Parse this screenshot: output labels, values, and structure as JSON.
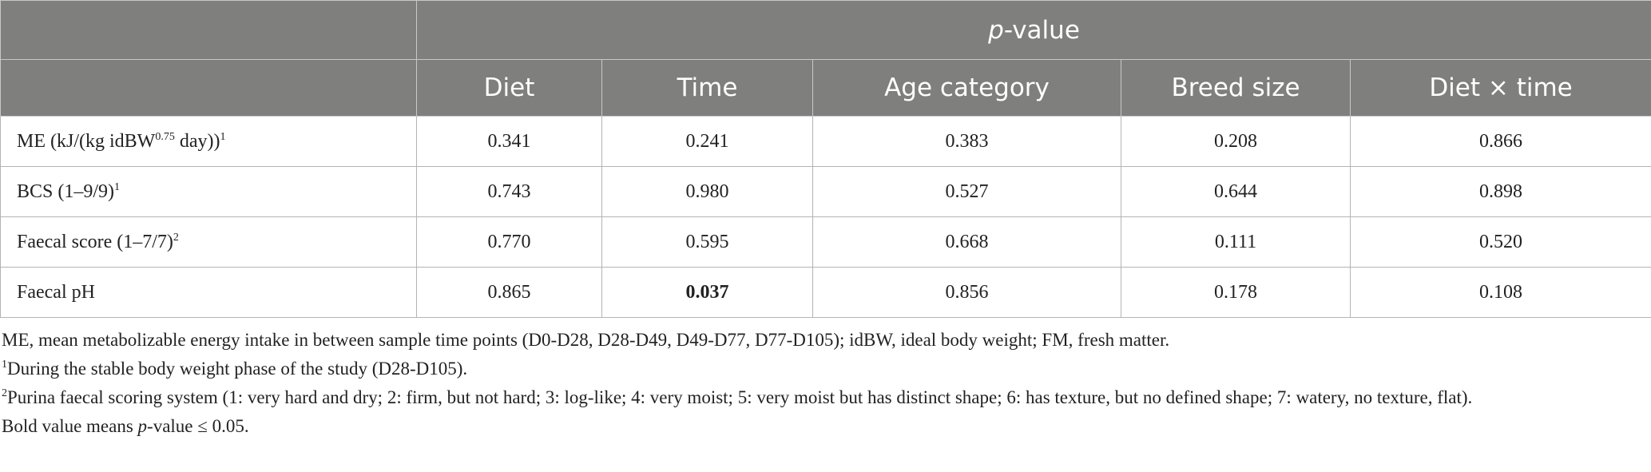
{
  "header": {
    "group_italic": "p",
    "group_rest": "-value",
    "columns": [
      "Diet",
      "Time",
      "Age category",
      "Breed size",
      "Diet × time"
    ]
  },
  "table": {
    "rows": [
      {
        "label": "ME (kJ/(kg idBW",
        "label_sup": "0.75",
        "label_rest": " day))",
        "note": "1",
        "values": [
          "0.341",
          "0.241",
          "0.383",
          "0.208",
          "0.866"
        ]
      },
      {
        "label": "BCS (1–9/9)",
        "note": "1",
        "values": [
          "0.743",
          "0.980",
          "0.527",
          "0.644",
          "0.898"
        ]
      },
      {
        "label": "Faecal score (1–7/7)",
        "note": "2",
        "values": [
          "0.770",
          "0.595",
          "0.668",
          "0.111",
          "0.520"
        ]
      },
      {
        "label": "Faecal pH",
        "values": [
          "0.865",
          "0.037",
          "0.856",
          "0.178",
          "0.108"
        ]
      }
    ]
  },
  "footnotes": {
    "abbreviations": "ME, mean metabolizable energy intake in between sample time points (D0-D28, D28-D49, D49-D77, D77-D105); idBW, ideal body weight; FM, fresh matter.",
    "note1_mark": "1",
    "note1": "During the stable body weight phase of the study (D28-D105).",
    "note2_mark": "2",
    "note2": "Purina faecal scoring system (1: very hard and dry; 2: firm, but not hard; 3: log-like; 4: very moist; 5: very moist but has distinct shape; 6: has texture, but no defined shape; 7: watery, no texture, flat).",
    "bold_pre": "Bold value means ",
    "bold_italic": "p",
    "bold_post": "-value ≤ 0.05."
  }
}
